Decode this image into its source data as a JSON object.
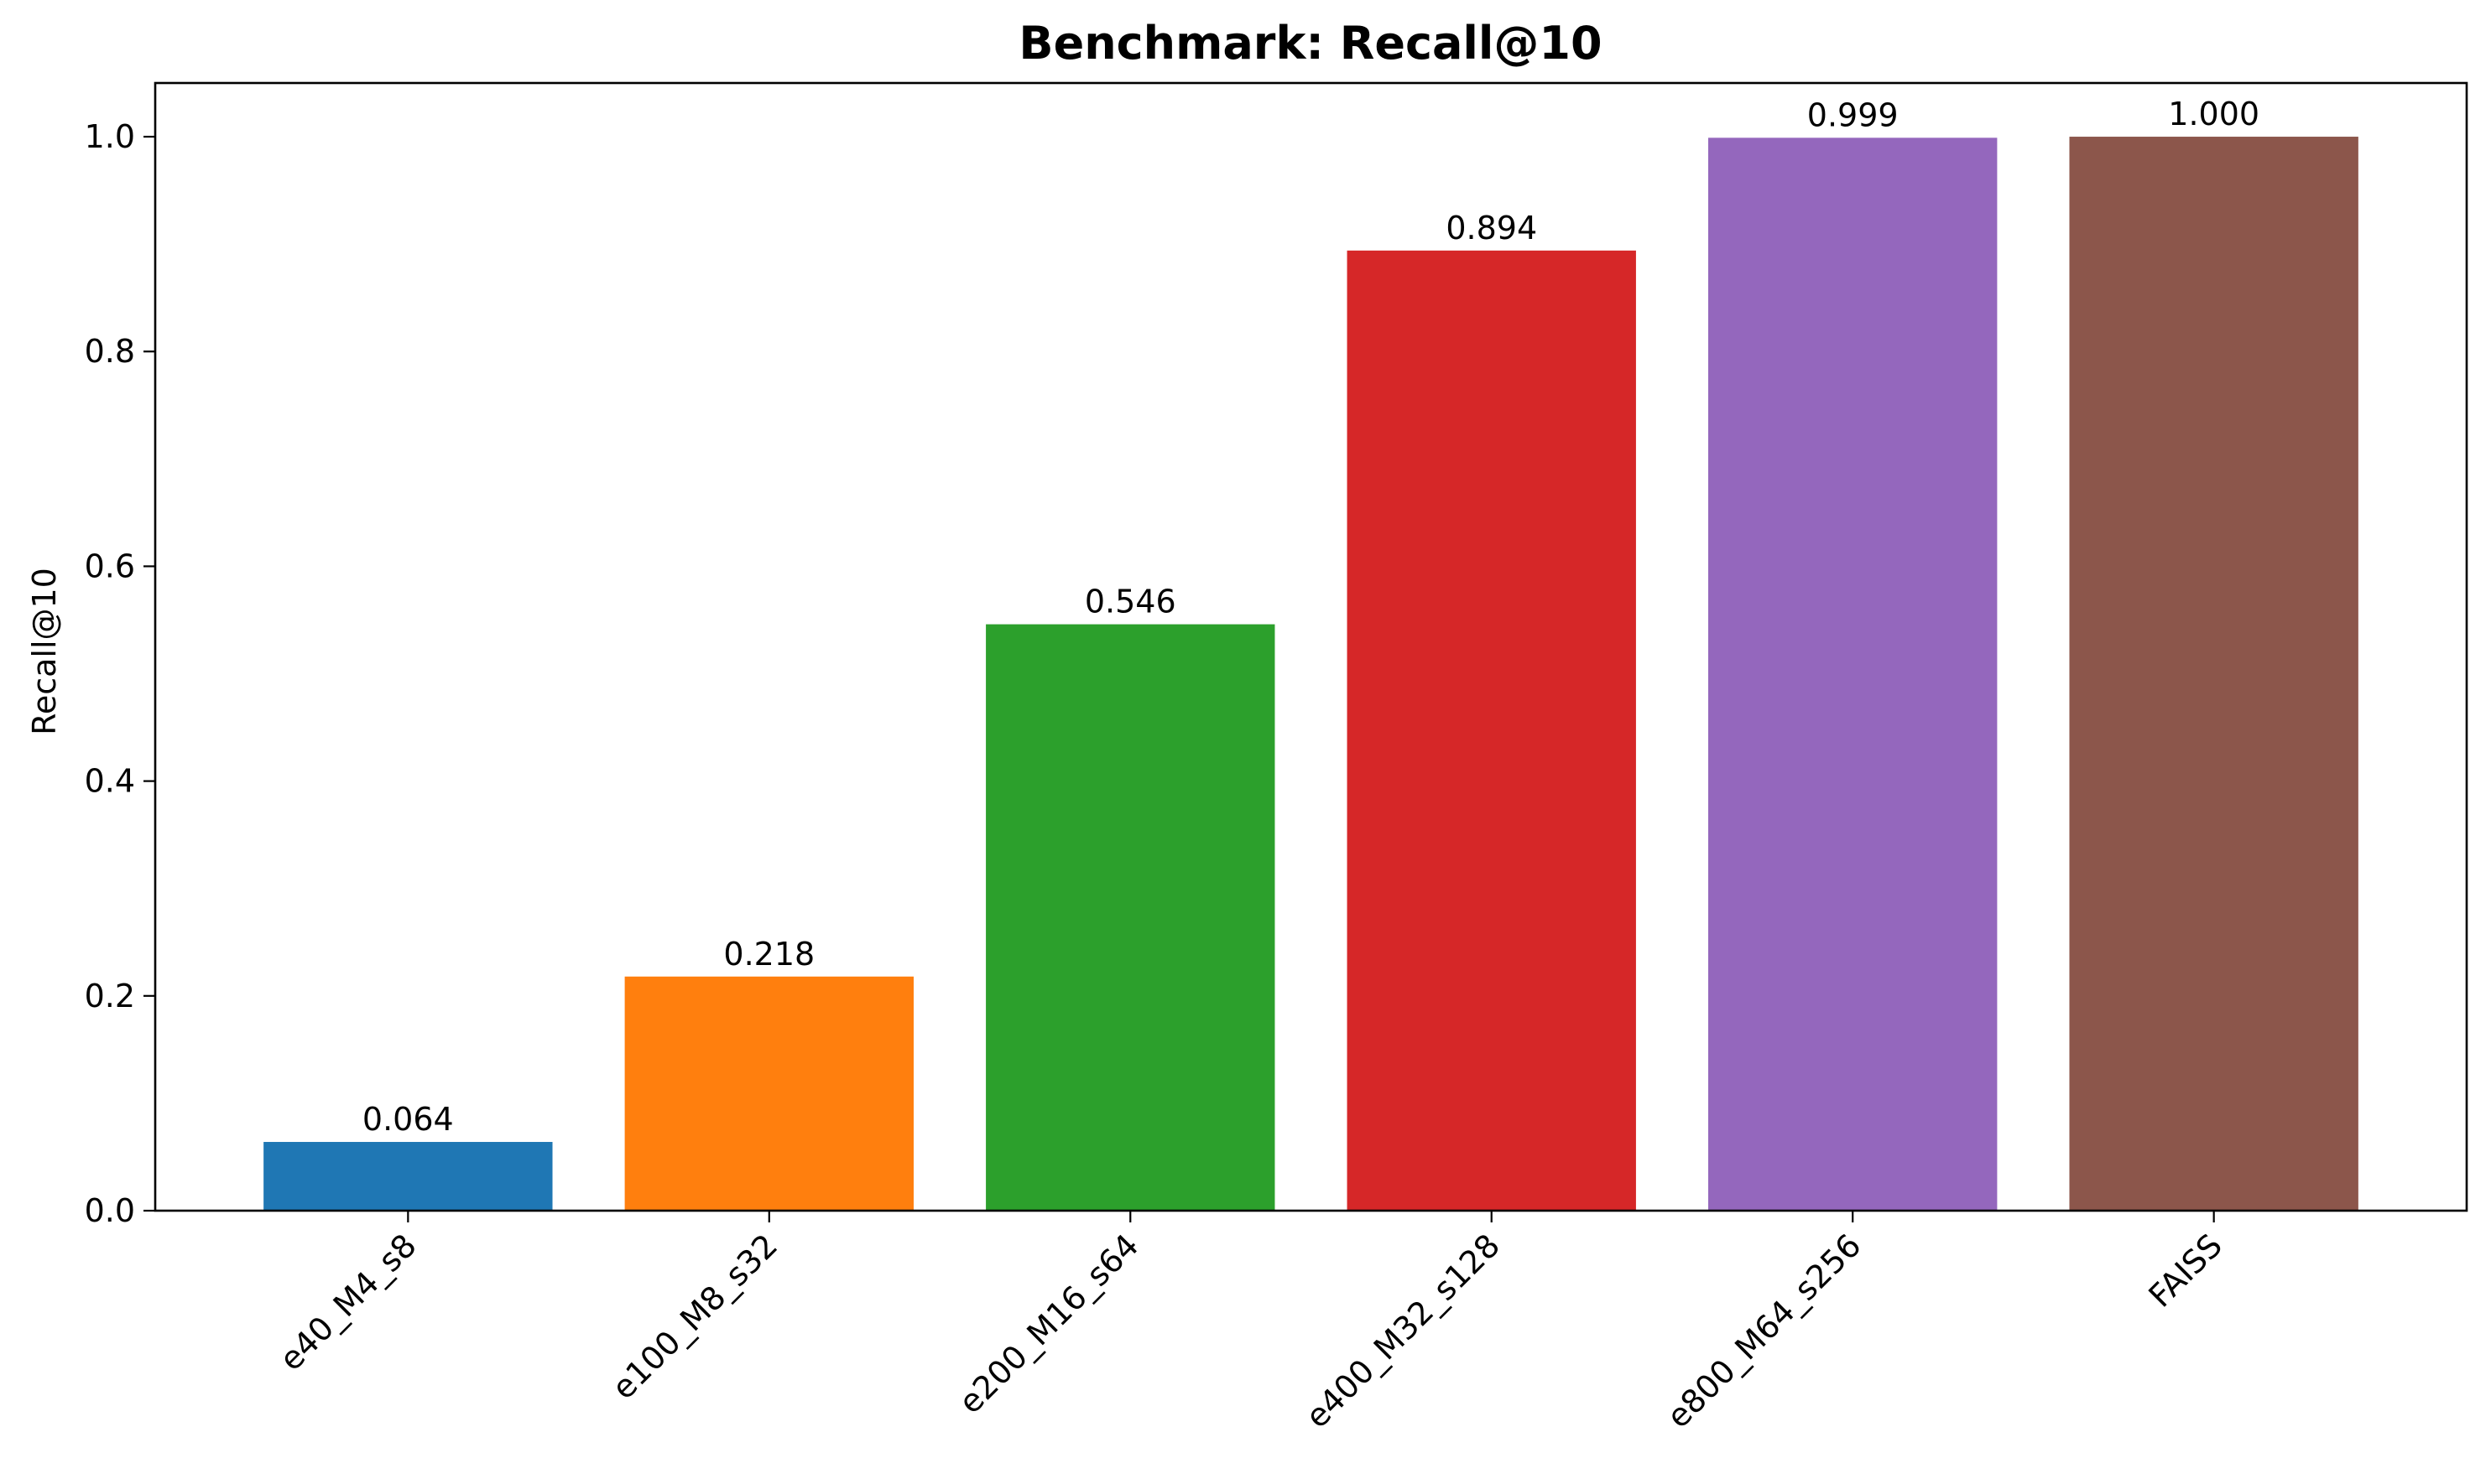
{
  "chart_data": {
    "type": "bar",
    "title": "Benchmark: Recall@10",
    "xlabel": "",
    "ylabel": "Recall@10",
    "ylim": [
      0,
      1.05
    ],
    "yticks": [
      0.0,
      0.2,
      0.4,
      0.6,
      0.8,
      1.0
    ],
    "ytick_labels": [
      "0.0",
      "0.2",
      "0.4",
      "0.6",
      "0.8",
      "1.0"
    ],
    "categories": [
      "e40_M4_s8",
      "e100_M8_s32",
      "e200_M16_s64",
      "e400_M32_s128",
      "e800_M64_s256",
      "FAISS"
    ],
    "values": [
      0.064,
      0.218,
      0.546,
      0.894,
      0.999,
      1.0
    ],
    "value_labels": [
      "0.064",
      "0.218",
      "0.546",
      "0.894",
      "0.999",
      "1.000"
    ],
    "colors": [
      "#1f77b4",
      "#ff7f0e",
      "#2ca02c",
      "#d62728",
      "#9467bd",
      "#8c564b"
    ],
    "grid": false,
    "legend": "none"
  }
}
